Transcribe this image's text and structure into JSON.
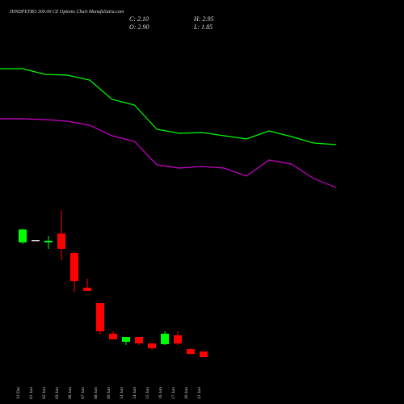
{
  "chart_data": [
    {
      "type": "candlestick",
      "title": "HINDPETRO 300.00 CE Options Chart MunafaSutra.com",
      "annotations": [
        "C: 2.10",
        "H: 2.95",
        "O: 2.90",
        "L: 1.85"
      ],
      "categories": [
        "31 Dec",
        "01 Jan",
        "02 Jan",
        "03 Jan",
        "06 Jan",
        "07 Jan",
        "08 Jan",
        "09 Jan",
        "13 Jan",
        "14 Jan",
        "15 Jan",
        "16 Jan",
        "17 Jan",
        "20 Jan",
        "21 Jan"
      ],
      "open": [
        15.5,
        15.8,
        15.5,
        16.6,
        14.2,
        9.9,
        8.0,
        4.2,
        3.2,
        3.8,
        3.0,
        2.9,
        4.0,
        2.3,
        2.0
      ],
      "high": [
        17.2,
        15.8,
        16.3,
        19.5,
        14.3,
        11.0,
        8.0,
        4.5,
        3.8,
        3.8,
        3.0,
        4.5,
        4.5,
        2.4,
        2.0
      ],
      "low": [
        15.3,
        15.8,
        14.7,
        13.3,
        9.3,
        9.5,
        4.1,
        3.5,
        2.8,
        2.8,
        2.2,
        2.8,
        2.8,
        1.6,
        1.3
      ],
      "close": [
        17.1,
        15.8,
        15.7,
        14.7,
        10.7,
        9.5,
        4.5,
        3.5,
        3.8,
        3.0,
        2.4,
        4.2,
        3.0,
        1.7,
        1.3
      ],
      "up_color": "#00ff00",
      "down_color": "#ff0000",
      "flat_color": "#dddddd",
      "ylim": [
        0,
        45.5
      ]
    },
    {
      "type": "line",
      "x": [
        0,
        1,
        2,
        3,
        4,
        5,
        6,
        7,
        8,
        9,
        10,
        11,
        12,
        13,
        14,
        15
      ],
      "xlim": [
        0,
        15
      ],
      "ylim": [
        0,
        45.5
      ],
      "series": [
        {
          "color": "#00ff00",
          "values": [
            37.0,
            37.0,
            36.3,
            36.2,
            35.6,
            33.2,
            32.5,
            29.5,
            29.0,
            29.1,
            28.7,
            28.3,
            29.3,
            28.6,
            27.8,
            27.6
          ]
        },
        {
          "color": "#cc00cc",
          "values": [
            30.8,
            30.8,
            30.7,
            30.5,
            30.0,
            28.7,
            28.0,
            25.1,
            24.7,
            24.9,
            24.7,
            23.7,
            25.7,
            25.2,
            23.4,
            22.3
          ]
        }
      ]
    }
  ]
}
